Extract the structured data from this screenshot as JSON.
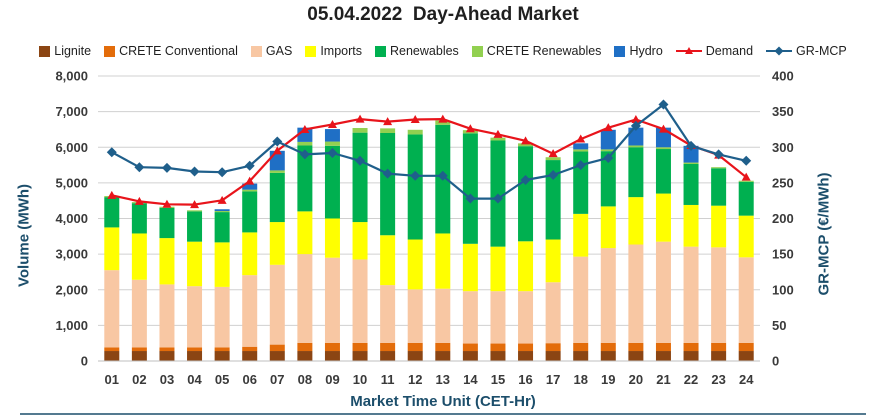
{
  "chart_data": {
    "type": "bar",
    "title": "05.04.2022  Day-Ahead Market",
    "xlabel": "Market Time Unit (CET-Hr)",
    "ylabel": "Volume (MWh)",
    "y2label": "GR-MCP (€/MWh)",
    "ylim": [
      0,
      8000
    ],
    "y2lim": [
      0,
      400
    ],
    "yticks": [
      0,
      1000,
      2000,
      3000,
      4000,
      5000,
      6000,
      7000,
      8000
    ],
    "yticklabels": [
      "0",
      "1,000",
      "2,000",
      "3,000",
      "4,000",
      "5,000",
      "6,000",
      "7,000",
      "8,000"
    ],
    "y2ticks": [
      0,
      50,
      100,
      150,
      200,
      250,
      300,
      350,
      400
    ],
    "y2ticklabels": [
      "0",
      "50",
      "100",
      "150",
      "200",
      "250",
      "300",
      "350",
      "400"
    ],
    "categories": [
      "01",
      "02",
      "03",
      "04",
      "05",
      "06",
      "07",
      "08",
      "09",
      "10",
      "11",
      "12",
      "13",
      "14",
      "15",
      "16",
      "17",
      "18",
      "19",
      "20",
      "21",
      "22",
      "23",
      "24"
    ],
    "series": [
      {
        "name": "Lignite",
        "kind": "stacked-bar",
        "color": "#8b4513",
        "values": [
          280,
          280,
          280,
          280,
          280,
          280,
          280,
          280,
          280,
          280,
          280,
          280,
          280,
          280,
          280,
          280,
          280,
          280,
          280,
          280,
          280,
          280,
          280,
          280
        ]
      },
      {
        "name": "CRETE Conventional",
        "kind": "stacked-bar",
        "color": "#e36c0a",
        "values": [
          100,
          100,
          100,
          100,
          100,
          120,
          180,
          230,
          230,
          230,
          230,
          230,
          230,
          210,
          210,
          210,
          220,
          230,
          230,
          230,
          230,
          230,
          230,
          230
        ]
      },
      {
        "name": "GAS",
        "kind": "stacked-bar",
        "color": "#f8c7a3",
        "values": [
          2170,
          1900,
          1770,
          1720,
          1700,
          2010,
          2240,
          2490,
          2390,
          2340,
          1620,
          1500,
          1520,
          1470,
          1470,
          1470,
          1710,
          2420,
          2660,
          2760,
          2840,
          2700,
          2680,
          2400
        ]
      },
      {
        "name": "Imports",
        "kind": "stacked-bar",
        "color": "#ffff00",
        "values": [
          1200,
          1300,
          1300,
          1250,
          1250,
          1200,
          1200,
          1200,
          1100,
          1050,
          1400,
          1400,
          1550,
          1330,
          1250,
          1400,
          1200,
          1200,
          1170,
          1330,
          1350,
          1170,
          1170,
          1170
        ]
      },
      {
        "name": "Renewables",
        "kind": "stacked-bar",
        "color": "#00b050",
        "values": [
          850,
          850,
          850,
          850,
          850,
          1150,
          1380,
          1850,
          2040,
          2510,
          2870,
          2950,
          3050,
          3100,
          2980,
          2670,
          2230,
          1750,
          1550,
          1400,
          1250,
          1150,
          1050,
          950
        ]
      },
      {
        "name": "CRETE Renewables",
        "kind": "stacked-bar",
        "color": "#92d050",
        "values": [
          30,
          30,
          30,
          30,
          30,
          50,
          70,
          100,
          120,
          130,
          130,
          130,
          120,
          90,
          80,
          80,
          80,
          60,
          50,
          50,
          50,
          40,
          30,
          30
        ]
      },
      {
        "name": "Hydro",
        "kind": "stacked-bar",
        "color": "#1f6fc5",
        "values": [
          0,
          0,
          0,
          0,
          50,
          170,
          550,
          400,
          350,
          0,
          0,
          0,
          0,
          0,
          0,
          0,
          0,
          170,
          550,
          500,
          550,
          470,
          0,
          0
        ]
      },
      {
        "name": "Demand",
        "kind": "line",
        "axis": "left",
        "color": "#e8141b",
        "marker": "triangle",
        "values": [
          4650,
          4480,
          4400,
          4390,
          4510,
          5050,
          5900,
          6500,
          6640,
          6790,
          6720,
          6780,
          6790,
          6520,
          6360,
          6180,
          5820,
          6230,
          6550,
          6780,
          6510,
          6050,
          5780,
          5160
        ]
      },
      {
        "name": "GR-MCP",
        "kind": "line",
        "axis": "right",
        "color": "#1f5f8b",
        "marker": "diamond",
        "values": [
          293,
          272,
          271,
          266,
          265,
          274,
          308,
          290,
          292,
          281,
          263,
          260,
          260,
          228,
          228,
          254,
          261,
          275,
          285,
          330,
          360,
          302,
          290,
          281
        ]
      }
    ]
  }
}
